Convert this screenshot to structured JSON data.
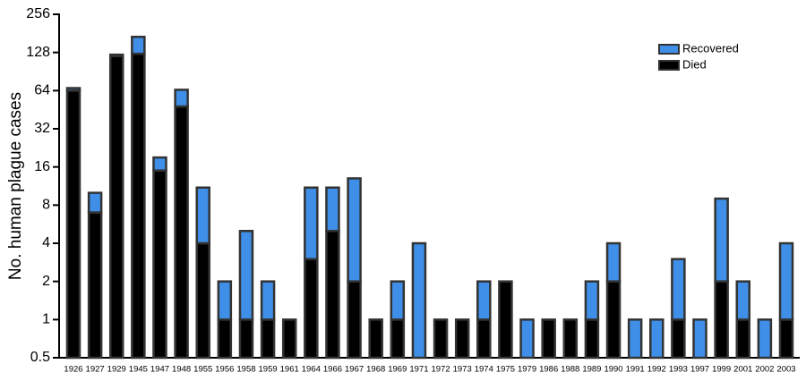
{
  "chart_data": {
    "type": "stacked-bar",
    "y_label": "No. human plague cases",
    "log_scale": true,
    "log_base": 2,
    "categories": [
      "1926",
      "1927",
      "1929",
      "1945",
      "1947",
      "1948",
      "1955",
      "1956",
      "1958",
      "1959",
      "1961",
      "1964",
      "1966",
      "1967",
      "1968",
      "1969",
      "1971",
      "1972",
      "1973",
      "1974",
      "1975",
      "1979",
      "1986",
      "1988",
      "1989",
      "1990",
      "1991",
      "1992",
      "1993",
      "1997",
      "1999",
      "2001",
      "2002",
      "2003"
    ],
    "series": [
      {
        "name": "Died",
        "color": "#000000",
        "values": [
          64,
          7,
          120,
          125,
          15,
          48,
          4,
          1,
          1,
          1,
          1,
          3,
          5,
          2,
          1,
          1,
          0,
          1,
          1,
          1,
          2,
          0,
          1,
          1,
          1,
          2,
          0,
          0,
          1,
          0,
          2,
          1,
          0,
          1
        ]
      },
      {
        "name": "Recovered",
        "color": "#3f8fe8",
        "values": [
          3,
          3,
          3,
          45,
          4,
          17,
          7,
          1,
          4,
          1,
          0,
          8,
          6,
          11,
          0,
          1,
          4,
          0,
          0,
          1,
          0,
          1,
          0,
          0,
          1,
          2,
          1,
          1,
          2,
          1,
          7,
          1,
          1,
          3
        ]
      }
    ],
    "ylim": [
      0.5,
      256
    ],
    "yticks": [
      0.5,
      1,
      2,
      4,
      8,
      16,
      32,
      64,
      128,
      256
    ],
    "legend_position": "upper right"
  }
}
